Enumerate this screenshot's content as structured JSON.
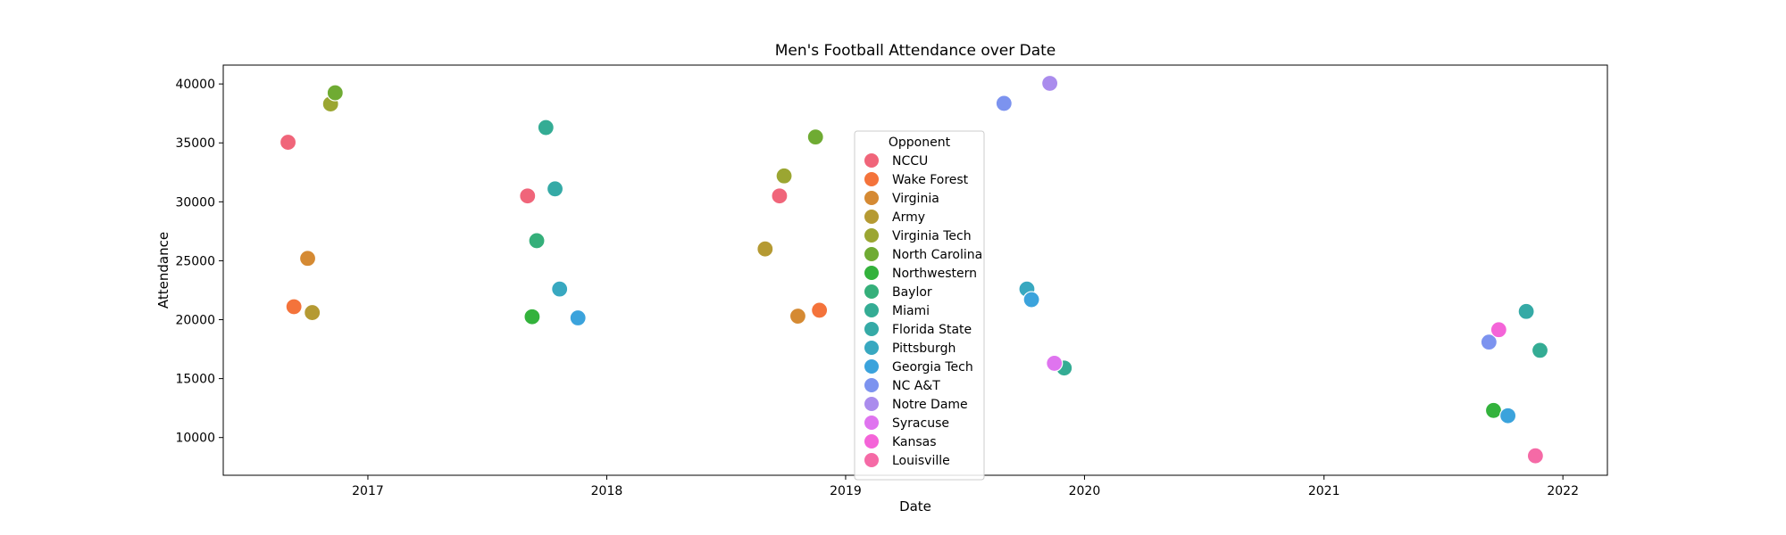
{
  "chart_data": {
    "type": "scatter",
    "title": "Men's Football Attendance over Date",
    "xlabel": "Date",
    "ylabel": "Attendance",
    "xlim": [
      "2016-05-25",
      "2022-03-10"
    ],
    "ylim": [
      6800,
      41600
    ],
    "x_ticks": [
      "2017",
      "2018",
      "2019",
      "2020",
      "2021",
      "2022"
    ],
    "y_ticks": [
      10000,
      15000,
      20000,
      25000,
      30000,
      35000,
      40000
    ],
    "grid": false,
    "legend": {
      "title": "Opponent",
      "placement": "center"
    },
    "series": [
      {
        "name": "NCCU",
        "color": "#f0657a",
        "points": [
          {
            "x": "2016-09-01",
            "y": 35050
          },
          {
            "x": "2017-09-02",
            "y": 30500
          },
          {
            "x": "2018-09-22",
            "y": 30500
          }
        ]
      },
      {
        "name": "Wake Forest",
        "color": "#f4733b",
        "points": [
          {
            "x": "2016-09-10",
            "y": 21100
          },
          {
            "x": "2018-11-22",
            "y": 20800
          }
        ]
      },
      {
        "name": "Virginia",
        "color": "#d58a33",
        "points": [
          {
            "x": "2016-10-01",
            "y": 25200
          },
          {
            "x": "2018-10-20",
            "y": 20300
          }
        ]
      },
      {
        "name": "Army",
        "color": "#b59a33",
        "points": [
          {
            "x": "2016-10-08",
            "y": 20600
          },
          {
            "x": "2018-08-31",
            "y": 26000
          }
        ]
      },
      {
        "name": "Virginia Tech",
        "color": "#9ba632",
        "points": [
          {
            "x": "2016-11-05",
            "y": 38300
          },
          {
            "x": "2018-09-29",
            "y": 32200
          }
        ]
      },
      {
        "name": "North Carolina",
        "color": "#6fab33",
        "points": [
          {
            "x": "2016-11-12",
            "y": 39250
          },
          {
            "x": "2018-11-16",
            "y": 35500
          }
        ]
      },
      {
        "name": "Northwestern",
        "color": "#33b23c",
        "points": [
          {
            "x": "2017-09-09",
            "y": 20250
          },
          {
            "x": "2021-09-17",
            "y": 12300
          }
        ]
      },
      {
        "name": "Baylor",
        "color": "#35af7a",
        "points": [
          {
            "x": "2017-09-16",
            "y": 26700
          }
        ]
      },
      {
        "name": "Miami",
        "color": "#34ac94",
        "points": [
          {
            "x": "2017-09-30",
            "y": 36300
          },
          {
            "x": "2019-12-01",
            "y": 15900
          },
          {
            "x": "2021-11-27",
            "y": 17400
          }
        ]
      },
      {
        "name": "Florida State",
        "color": "#35aaa6",
        "points": [
          {
            "x": "2017-10-14",
            "y": 31100
          },
          {
            "x": "2021-11-06",
            "y": 20700
          }
        ]
      },
      {
        "name": "Pittsburgh",
        "color": "#38a8c0",
        "points": [
          {
            "x": "2017-10-21",
            "y": 22600
          },
          {
            "x": "2019-10-05",
            "y": 22600
          }
        ]
      },
      {
        "name": "Georgia Tech",
        "color": "#3ba3dc",
        "points": [
          {
            "x": "2017-11-18",
            "y": 20150
          },
          {
            "x": "2019-10-12",
            "y": 21700
          },
          {
            "x": "2021-10-09",
            "y": 11850
          }
        ]
      },
      {
        "name": "NC A&T",
        "color": "#7c93ef",
        "points": [
          {
            "x": "2019-08-31",
            "y": 38350
          },
          {
            "x": "2021-09-10",
            "y": 18100
          }
        ]
      },
      {
        "name": "Notre Dame",
        "color": "#aa8ced",
        "points": [
          {
            "x": "2019-11-09",
            "y": 40050
          }
        ]
      },
      {
        "name": "Syracuse",
        "color": "#df74ef",
        "points": [
          {
            "x": "2019-11-16",
            "y": 16300
          }
        ]
      },
      {
        "name": "Kansas",
        "color": "#f464d8",
        "points": [
          {
            "x": "2021-09-25",
            "y": 19150
          }
        ]
      },
      {
        "name": "Louisville",
        "color": "#f56aa6",
        "points": [
          {
            "x": "2021-11-20",
            "y": 8450
          }
        ]
      }
    ]
  }
}
